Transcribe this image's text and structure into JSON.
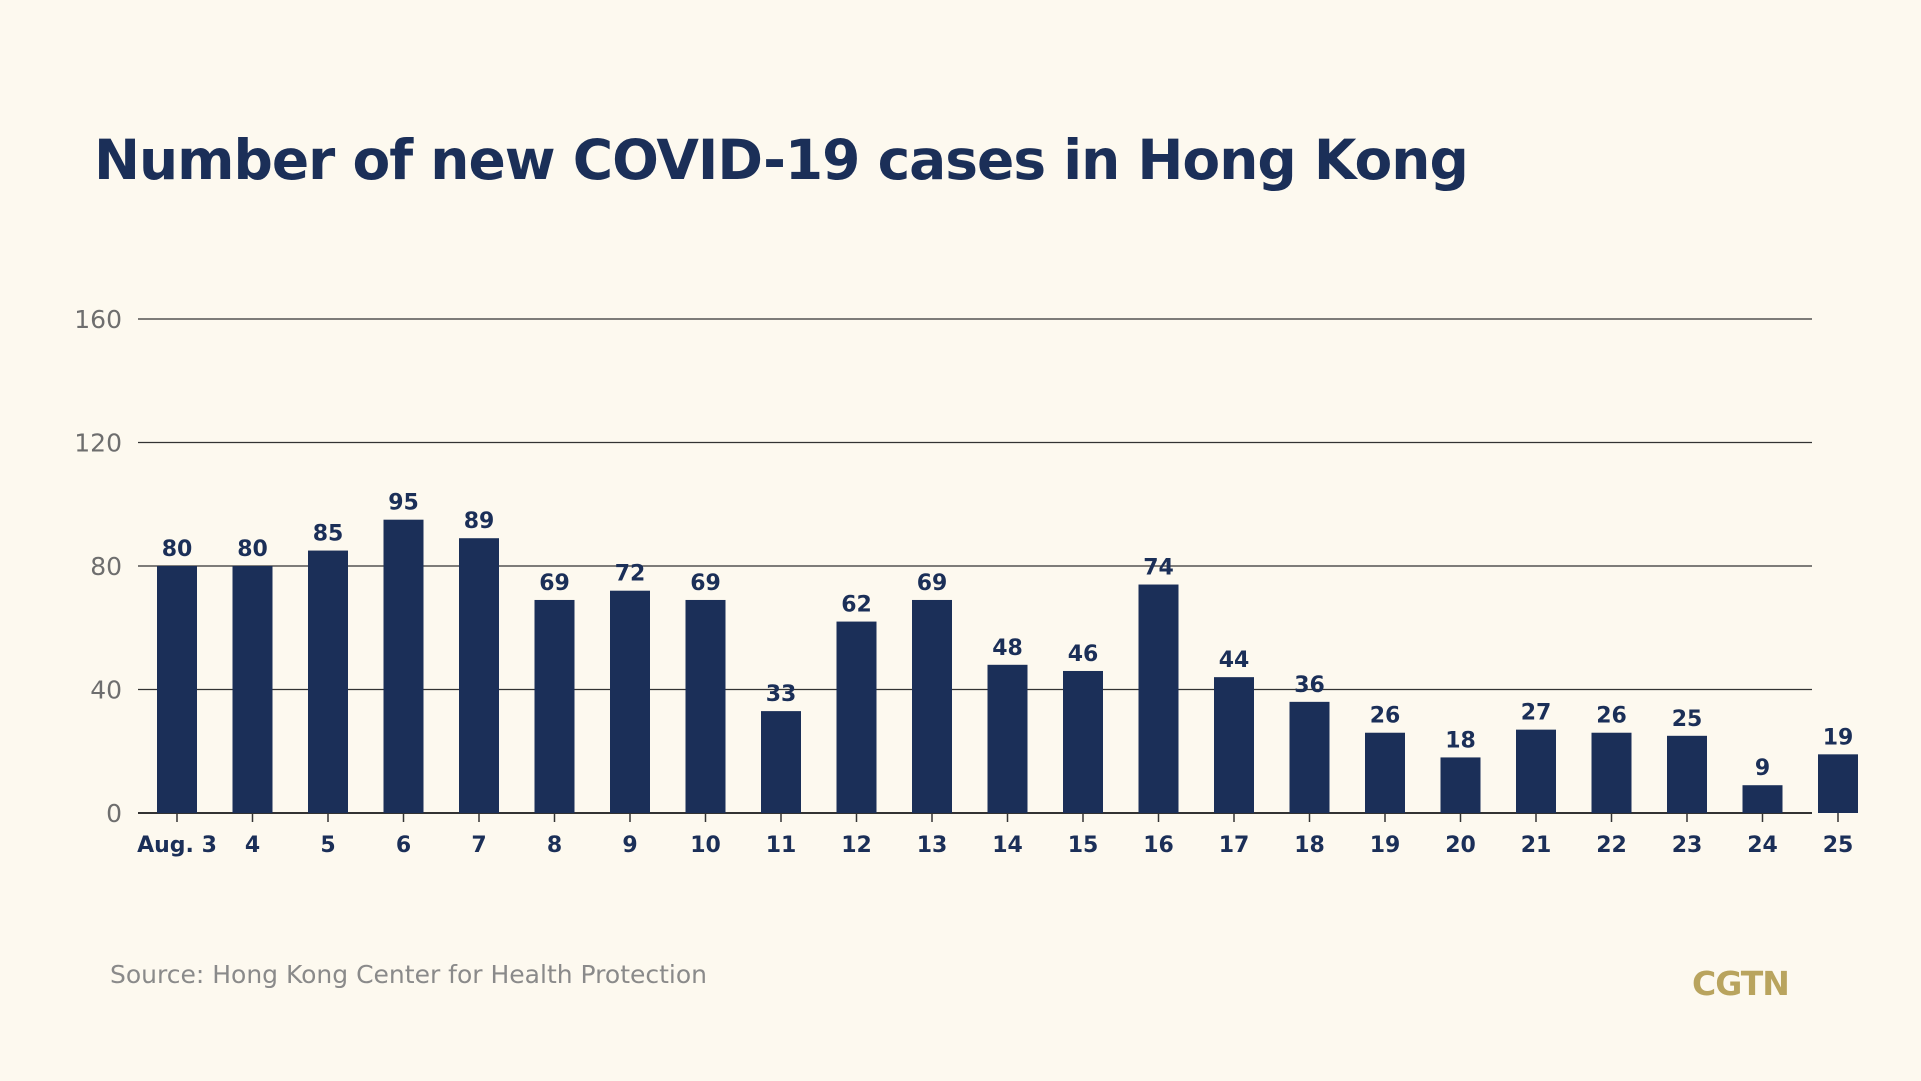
{
  "title": "Number of new COVID-19 cases in Hong Kong",
  "source": "Source: Hong Kong Center for Health Protection",
  "logo": "CGTN",
  "colors": {
    "background": "#fdf9ef",
    "bar": "#1b2f58",
    "title": "#1b2f58",
    "axis_text": "#6e6e6e",
    "grid": "#333333",
    "logo": "#b9a45e"
  },
  "chart_data": {
    "type": "bar",
    "categories": [
      "Aug. 3",
      "4",
      "5",
      "6",
      "7",
      "8",
      "9",
      "10",
      "11",
      "12",
      "13",
      "14",
      "15",
      "16",
      "17",
      "18",
      "19",
      "20",
      "21",
      "22",
      "23",
      "24",
      "25"
    ],
    "values": [
      80,
      80,
      85,
      95,
      89,
      69,
      72,
      69,
      33,
      62,
      69,
      48,
      46,
      74,
      44,
      36,
      26,
      18,
      27,
      26,
      25,
      9,
      19
    ],
    "title": "Number of new COVID-19 cases in Hong Kong",
    "xlabel": "",
    "ylabel": "",
    "ylim": [
      0,
      160
    ],
    "yticks": [
      0,
      40,
      80,
      120,
      160
    ],
    "grid": true,
    "legend": "none",
    "data_labels": true
  }
}
